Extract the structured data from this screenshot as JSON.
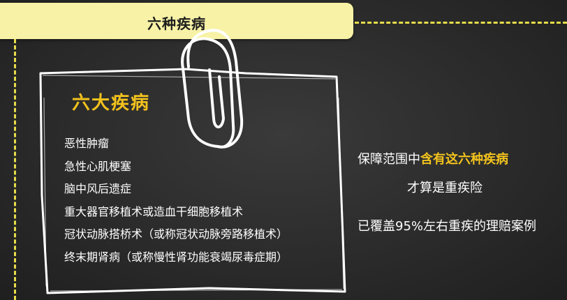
{
  "banner": {
    "title": "六种疾病"
  },
  "note": {
    "heading": "六大疾病",
    "items": [
      "恶性肿瘤",
      "急性心肌梗塞",
      "脑中风后遗症",
      "重大器官移植术或造血干细胞移植术",
      "冠状动脉搭桥术（或称冠状动脉旁路移植术）",
      "终末期肾病（或称慢性肾功能衰竭尿毒症期）"
    ]
  },
  "side": {
    "line1_prefix": "保障范围中",
    "line1_highlight": "含有这六种疾病",
    "line2": "才算是重疾险",
    "line3": "已覆盖95%左右重疾的理赔案例"
  },
  "colors": {
    "banner": "#f7f2a6",
    "dash": "#e5dc4a",
    "highlight": "#f2c21d",
    "text": "#ffffff",
    "background": "#2e2e2e"
  },
  "icons": {
    "paperclip": "paperclip-icon"
  }
}
